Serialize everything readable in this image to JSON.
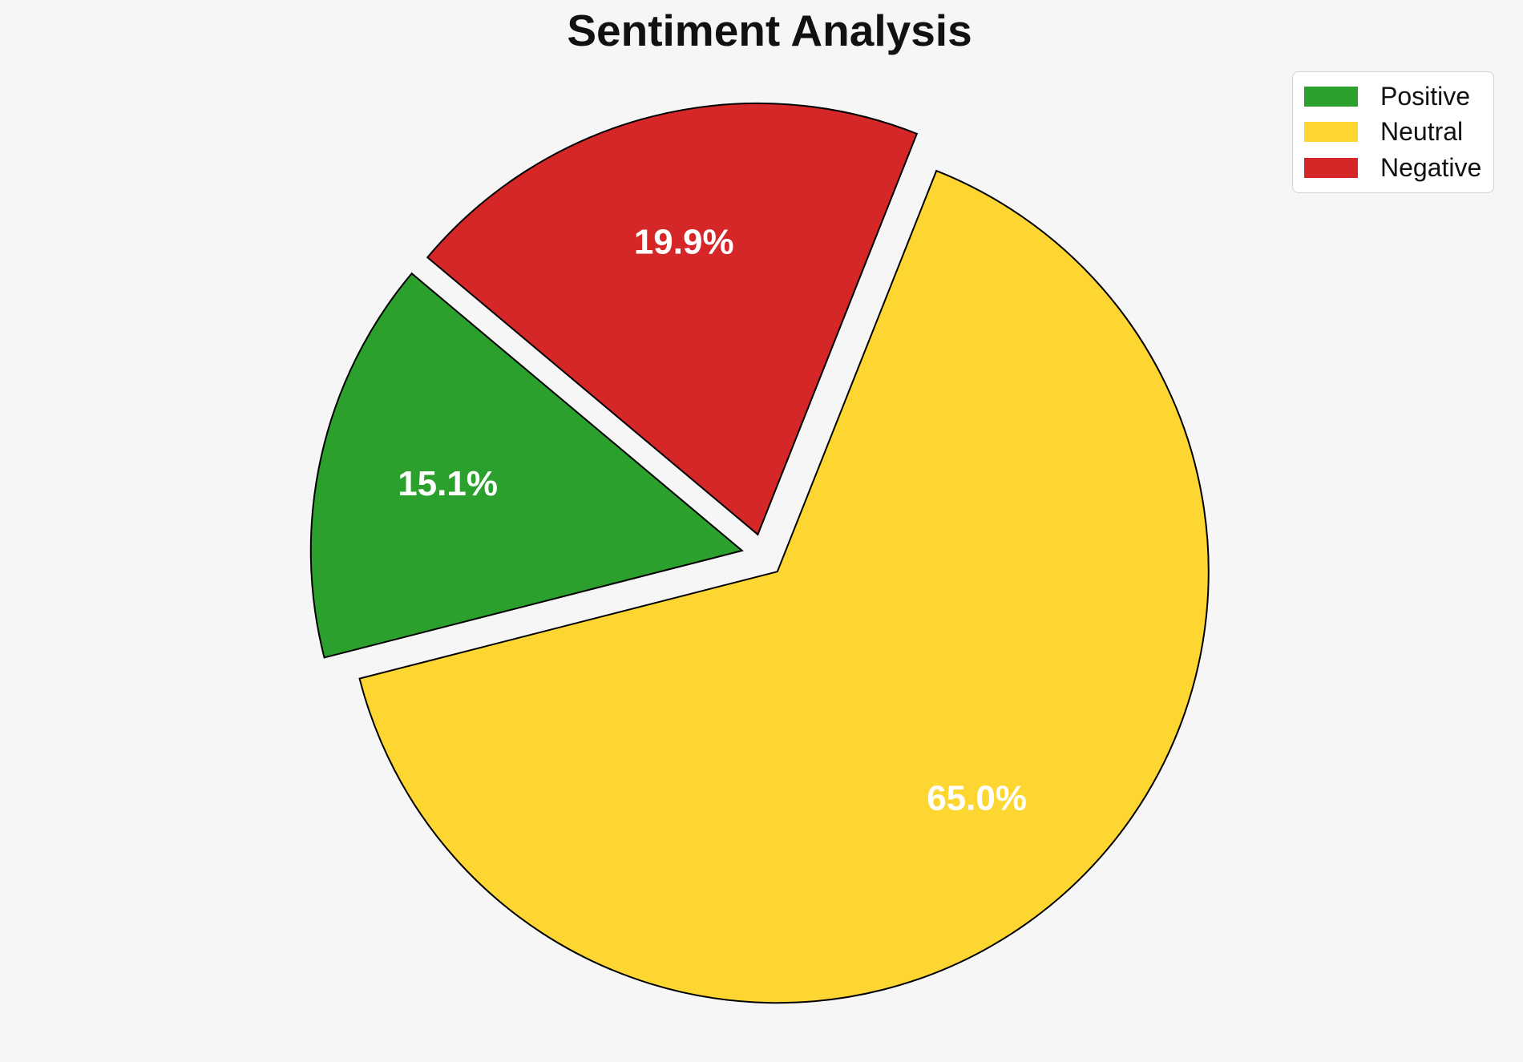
{
  "chart_data": {
    "type": "pie",
    "title": "Sentiment Analysis",
    "labels": [
      "Positive",
      "Neutral",
      "Negative"
    ],
    "values": [
      15.1,
      65.0,
      19.9
    ],
    "autopct_labels": [
      "15.1%",
      "65.0%",
      "19.9%"
    ],
    "colors": [
      "#2ca02c",
      "#fdd632",
      "#d62728"
    ],
    "start_angle": 140,
    "direction": "counterclockwise",
    "explode": [
      0.05,
      0.05,
      0.05
    ],
    "pct_distance": 0.7,
    "edge_color": "#000000",
    "edge_width": 2,
    "pct_label_color": "#ffffff",
    "background_color": "#f6f6f7",
    "legend_position": "upper-right",
    "legend": {
      "items": [
        {
          "label": "Positive",
          "color": "#2ca02c"
        },
        {
          "label": "Neutral",
          "color": "#fdd632"
        },
        {
          "label": "Negative",
          "color": "#d62728"
        }
      ]
    }
  }
}
